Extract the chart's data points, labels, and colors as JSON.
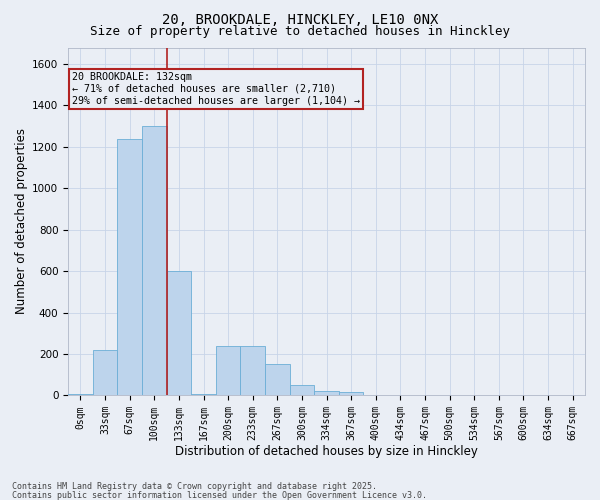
{
  "title1": "20, BROOKDALE, HINCKLEY, LE10 0NX",
  "title2": "Size of property relative to detached houses in Hinckley",
  "xlabel": "Distribution of detached houses by size in Hinckley",
  "ylabel": "Number of detached properties",
  "bin_labels": [
    "0sqm",
    "33sqm",
    "67sqm",
    "100sqm",
    "133sqm",
    "167sqm",
    "200sqm",
    "233sqm",
    "267sqm",
    "300sqm",
    "334sqm",
    "367sqm",
    "400sqm",
    "434sqm",
    "467sqm",
    "500sqm",
    "534sqm",
    "567sqm",
    "600sqm",
    "634sqm",
    "667sqm"
  ],
  "bar_heights": [
    5,
    220,
    1240,
    1300,
    600,
    5,
    240,
    240,
    150,
    50,
    20,
    15,
    0,
    0,
    0,
    0,
    0,
    0,
    0,
    0,
    0
  ],
  "bar_color": "#bdd4ec",
  "bar_edge_color": "#6baed6",
  "grid_color": "#c8d4e8",
  "bg_color": "#eaeef5",
  "vline_x": 4,
  "vline_color": "#b22222",
  "annotation_text": "20 BROOKDALE: 132sqm\n← 71% of detached houses are smaller (2,710)\n29% of semi-detached houses are larger (1,104) →",
  "annotation_box_color": "#b22222",
  "ylim": [
    0,
    1680
  ],
  "yticks": [
    0,
    200,
    400,
    600,
    800,
    1000,
    1200,
    1400,
    1600
  ],
  "footer1": "Contains HM Land Registry data © Crown copyright and database right 2025.",
  "footer2": "Contains public sector information licensed under the Open Government Licence v3.0.",
  "title_fontsize": 10,
  "subtitle_fontsize": 9,
  "tick_fontsize": 7,
  "label_fontsize": 8.5,
  "footer_fontsize": 6
}
